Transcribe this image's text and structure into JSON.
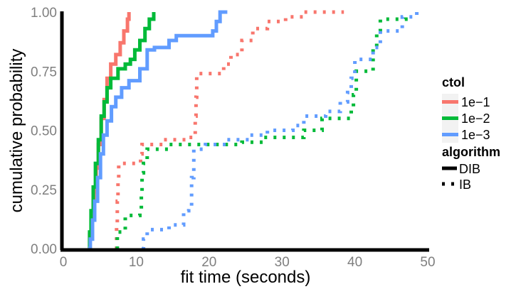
{
  "chart_data": {
    "type": "line",
    "xlabel": "fit time (seconds)",
    "ylabel": "cumulative probability",
    "xlim": [
      0,
      50
    ],
    "ylim": [
      0,
      1
    ],
    "x_ticks": [
      "0",
      "10",
      "20",
      "30",
      "40",
      "50"
    ],
    "x_tick_values": [
      0,
      10,
      20,
      30,
      40,
      50
    ],
    "y_ticks": [
      "0.00",
      "0.25",
      "0.50",
      "0.75",
      "1.00"
    ],
    "y_tick_values": [
      0,
      0.25,
      0.5,
      0.75,
      1
    ],
    "grid": false,
    "legend_position": "right",
    "legend": {
      "ctol": {
        "title": "ctol",
        "entries": [
          {
            "label": "1e−1",
            "color": "#F8766D"
          },
          {
            "label": "1e−2",
            "color": "#00BA38"
          },
          {
            "label": "1e−3",
            "color": "#619CFF"
          }
        ]
      },
      "algorithm": {
        "title": "algorithm",
        "entries": [
          {
            "label": "DIB",
            "linetype": "solid"
          },
          {
            "label": "IB",
            "linetype": "dotted"
          }
        ]
      }
    },
    "series": [
      {
        "ctol": "1e−1",
        "algorithm": "DIB",
        "color": "#F8766D",
        "linetype": "solid",
        "points": [
          [
            3.4,
            0
          ],
          [
            3.6,
            0.06
          ],
          [
            3.9,
            0.14
          ],
          [
            4.2,
            0.24
          ],
          [
            4.5,
            0.34
          ],
          [
            4.8,
            0.44
          ],
          [
            5.2,
            0.55
          ],
          [
            5.6,
            0.63
          ],
          [
            6.0,
            0.72
          ],
          [
            6.5,
            0.78
          ],
          [
            7.2,
            0.82
          ],
          [
            7.8,
            0.87
          ],
          [
            8.3,
            0.92
          ],
          [
            8.8,
            0.97
          ],
          [
            9.0,
            1.0
          ]
        ]
      },
      {
        "ctol": "1e−2",
        "algorithm": "DIB",
        "color": "#00BA38",
        "linetype": "solid",
        "points": [
          [
            3.4,
            0
          ],
          [
            3.6,
            0.07
          ],
          [
            3.8,
            0.16
          ],
          [
            4.1,
            0.26
          ],
          [
            4.4,
            0.36
          ],
          [
            4.8,
            0.46
          ],
          [
            5.2,
            0.56
          ],
          [
            5.6,
            0.62
          ],
          [
            6.0,
            0.68
          ],
          [
            6.5,
            0.72
          ],
          [
            7.5,
            0.76
          ],
          [
            8.5,
            0.78
          ],
          [
            9.2,
            0.8
          ],
          [
            9.8,
            0.84
          ],
          [
            10.5,
            0.88
          ],
          [
            11.2,
            0.93
          ],
          [
            11.8,
            0.97
          ],
          [
            12.4,
            1.0
          ]
        ]
      },
      {
        "ctol": "1e−3",
        "algorithm": "DIB",
        "color": "#619CFF",
        "linetype": "solid",
        "points": [
          [
            3.4,
            0
          ],
          [
            3.7,
            0.04
          ],
          [
            4.0,
            0.12
          ],
          [
            4.3,
            0.2
          ],
          [
            4.7,
            0.3
          ],
          [
            5.1,
            0.4
          ],
          [
            5.5,
            0.48
          ],
          [
            6.0,
            0.54
          ],
          [
            6.6,
            0.6
          ],
          [
            7.2,
            0.64
          ],
          [
            8.0,
            0.68
          ],
          [
            9.0,
            0.71
          ],
          [
            10.5,
            0.76
          ],
          [
            11.5,
            0.84
          ],
          [
            12.5,
            0.85
          ],
          [
            14.5,
            0.88
          ],
          [
            15.5,
            0.9
          ],
          [
            20.5,
            0.92
          ],
          [
            21.0,
            0.96
          ],
          [
            21.5,
            1.0
          ],
          [
            22.5,
            1.0
          ]
        ]
      },
      {
        "ctol": "1e−1",
        "algorithm": "IB",
        "color": "#F8766D",
        "linetype": "dotted",
        "points": [
          [
            7.2,
            0
          ],
          [
            7.3,
            0.11
          ],
          [
            7.4,
            0.2
          ],
          [
            7.5,
            0.28
          ],
          [
            7.6,
            0.36
          ],
          [
            10.6,
            0.4
          ],
          [
            10.8,
            0.44
          ],
          [
            13.8,
            0.46
          ],
          [
            16.8,
            0.47
          ],
          [
            17.9,
            0.48
          ],
          [
            18.1,
            0.56
          ],
          [
            18.2,
            0.64
          ],
          [
            18.3,
            0.74
          ],
          [
            22.0,
            0.78
          ],
          [
            23.0,
            0.82
          ],
          [
            24.5,
            0.88
          ],
          [
            26.0,
            0.93
          ],
          [
            28.0,
            0.96
          ],
          [
            30.5,
            0.98
          ],
          [
            33.0,
            1.0
          ],
          [
            38.5,
            1.0
          ]
        ]
      },
      {
        "ctol": "1e−2",
        "algorithm": "IB",
        "color": "#00BA38",
        "linetype": "dotted",
        "points": [
          [
            7.3,
            0
          ],
          [
            7.4,
            0.07
          ],
          [
            8.5,
            0.14
          ],
          [
            10.5,
            0.16
          ],
          [
            10.7,
            0.24
          ],
          [
            10.8,
            0.32
          ],
          [
            11.0,
            0.36
          ],
          [
            11.5,
            0.42
          ],
          [
            14.5,
            0.44
          ],
          [
            17.5,
            0.44
          ],
          [
            24.5,
            0.45
          ],
          [
            27.5,
            0.47
          ],
          [
            33.0,
            0.5
          ],
          [
            35.5,
            0.55
          ],
          [
            39.5,
            0.6
          ],
          [
            39.8,
            0.65
          ],
          [
            40.2,
            0.75
          ],
          [
            42.5,
            0.85
          ],
          [
            43.0,
            0.92
          ],
          [
            43.5,
            0.97
          ],
          [
            47.0,
            1.0
          ]
        ]
      },
      {
        "ctol": "1e−3",
        "algorithm": "IB",
        "color": "#619CFF",
        "linetype": "dotted",
        "points": [
          [
            10.8,
            0
          ],
          [
            11.0,
            0.04
          ],
          [
            11.5,
            0.08
          ],
          [
            14.5,
            0.1
          ],
          [
            16.5,
            0.16
          ],
          [
            17.2,
            0.18
          ],
          [
            17.6,
            0.3
          ],
          [
            17.9,
            0.42
          ],
          [
            19.5,
            0.44
          ],
          [
            22.5,
            0.46
          ],
          [
            25.5,
            0.48
          ],
          [
            28.0,
            0.5
          ],
          [
            31.5,
            0.52
          ],
          [
            33.0,
            0.56
          ],
          [
            36.0,
            0.58
          ],
          [
            38.0,
            0.62
          ],
          [
            39.0,
            0.66
          ],
          [
            39.5,
            0.72
          ],
          [
            40.0,
            0.8
          ],
          [
            42.5,
            0.85
          ],
          [
            43.5,
            0.92
          ],
          [
            46.5,
            0.98
          ],
          [
            48.5,
            1.0
          ]
        ]
      }
    ]
  }
}
